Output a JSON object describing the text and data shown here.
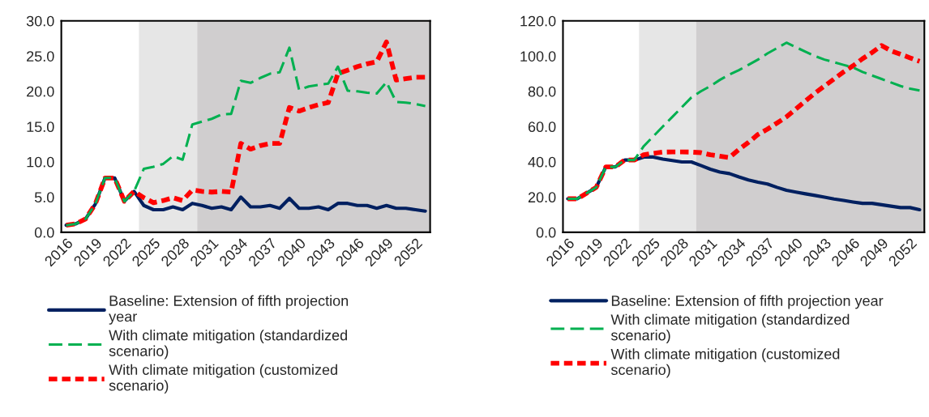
{
  "chart_data": [
    {
      "type": "line",
      "categories": [
        "2016",
        null,
        null,
        "2019",
        null,
        null,
        "2022",
        null,
        null,
        "2025",
        null,
        null,
        "2028",
        null,
        null,
        "2031",
        null,
        null,
        "2034",
        null,
        null,
        "2037",
        null,
        null,
        "2040",
        null,
        null,
        "2043",
        null,
        null,
        "2046",
        null,
        null,
        "2049",
        null,
        null,
        "2052",
        null
      ],
      "ylim": [
        0,
        30
      ],
      "yticks": [
        {
          "value": 0,
          "label": "0.0"
        },
        {
          "value": 5,
          "label": "5.0"
        },
        {
          "value": 10,
          "label": "10.0"
        },
        {
          "value": 15,
          "label": "15.0"
        },
        {
          "value": 20,
          "label": "20.0"
        },
        {
          "value": 25,
          "label": "25.0"
        },
        {
          "value": 30,
          "label": "30.0"
        }
      ],
      "legend": "bottom",
      "series": [
        {
          "name": "Baseline: Extension of fifth projection\nyear",
          "color": "#002060",
          "line_style": "solid",
          "values": [
            1.0,
            1.2,
            1.9,
            4.0,
            7.7,
            7.7,
            4.4,
            5.8,
            3.8,
            3.2,
            3.2,
            3.6,
            3.2,
            4.1,
            3.8,
            3.4,
            3.6,
            3.2,
            5.0,
            3.6,
            3.6,
            3.8,
            3.4,
            4.8,
            3.4,
            3.4,
            3.6,
            3.2,
            4.1,
            4.1,
            3.8,
            3.8,
            3.4,
            3.8,
            3.4,
            3.4,
            3.2,
            3.0
          ]
        },
        {
          "name": "With climate mitigation (standardized\nscenario)",
          "color": "#00b050",
          "line_style": "dashed",
          "values": [
            1.0,
            1.2,
            1.9,
            4.0,
            7.7,
            7.7,
            4.4,
            5.8,
            9.0,
            9.3,
            9.7,
            10.8,
            10.3,
            15.3,
            15.7,
            16.1,
            16.7,
            16.8,
            21.5,
            21.2,
            21.9,
            22.5,
            22.7,
            26.2,
            20.2,
            20.7,
            20.9,
            21.1,
            23.5,
            20.1,
            20.0,
            19.8,
            19.7,
            21.3,
            18.5,
            18.4,
            18.2,
            17.9
          ]
        },
        {
          "name": "With climate mitigation (customized\nscenario)",
          "color": "#ff0000",
          "line_style": "dotted",
          "values": [
            1.0,
            1.2,
            1.9,
            4.0,
            7.7,
            7.7,
            4.4,
            5.8,
            4.9,
            4.2,
            4.5,
            4.9,
            4.5,
            6.0,
            5.8,
            5.7,
            5.8,
            5.7,
            12.6,
            11.8,
            12.3,
            12.6,
            12.6,
            17.7,
            17.2,
            17.7,
            18.1,
            18.4,
            22.5,
            23.0,
            23.5,
            23.9,
            24.2,
            27.0,
            21.6,
            21.8,
            22.0,
            22.0
          ]
        }
      ]
    },
    {
      "type": "line",
      "categories": [
        "2016",
        null,
        null,
        "2019",
        null,
        null,
        "2022",
        null,
        null,
        "2025",
        null,
        null,
        "2028",
        null,
        null,
        "2031",
        null,
        null,
        "2034",
        null,
        null,
        "2037",
        null,
        null,
        "2040",
        null,
        null,
        "2043",
        null,
        null,
        "2046",
        null,
        null,
        "2049",
        null,
        null,
        "2052",
        null
      ],
      "ylim": [
        0,
        120
      ],
      "yticks": [
        {
          "value": 0,
          "label": "0.0"
        },
        {
          "value": 20,
          "label": "20.0"
        },
        {
          "value": 40,
          "label": "40.0"
        },
        {
          "value": 60,
          "label": "60.0"
        },
        {
          "value": 80,
          "label": "80.0"
        },
        {
          "value": 100,
          "label": "100.0"
        },
        {
          "value": 120,
          "label": "120.0"
        }
      ],
      "legend": "bottom",
      "series": [
        {
          "name": "Baseline: Extension of fifth projection year",
          "color": "#002060",
          "line_style": "solid",
          "values": [
            19.0,
            19.0,
            22.2,
            25.5,
            37.1,
            37.1,
            41.0,
            41.0,
            42.7,
            42.7,
            41.5,
            40.7,
            39.9,
            39.9,
            37.9,
            35.8,
            34.2,
            33.3,
            31.4,
            29.7,
            28.4,
            27.4,
            25.5,
            23.8,
            22.8,
            21.8,
            20.9,
            19.9,
            18.9,
            18.1,
            17.2,
            16.4,
            16.4,
            15.6,
            14.8,
            14.0,
            14.0,
            12.8
          ]
        },
        {
          "name": "With climate mitigation (standardized\nscenario)",
          "color": "#00b050",
          "line_style": "dashed",
          "values": [
            19.0,
            19.0,
            22.2,
            25.5,
            37.1,
            37.1,
            41.0,
            41.0,
            48.9,
            54.5,
            60.0,
            65.5,
            71.0,
            76.5,
            80.0,
            83.0,
            86.5,
            89.5,
            92.0,
            95.0,
            98.0,
            101.5,
            104.5,
            107.6,
            105.0,
            102.5,
            100.0,
            98.0,
            96.5,
            95.0,
            93.5,
            91.0,
            89.0,
            87.0,
            85.0,
            83.0,
            81.5,
            80.5
          ]
        },
        {
          "name": "With climate mitigation (customized\nscenario)",
          "color": "#ff0000",
          "line_style": "dotted",
          "values": [
            19.0,
            19.0,
            22.2,
            25.5,
            37.1,
            37.1,
            41.0,
            41.0,
            44.0,
            44.8,
            45.5,
            45.6,
            45.6,
            45.5,
            45.2,
            44.0,
            43.2,
            42.4,
            47.0,
            51.0,
            55.5,
            58.5,
            62.0,
            65.5,
            70.0,
            74.5,
            79.0,
            83.0,
            87.0,
            91.0,
            94.5,
            98.5,
            102.0,
            106.0,
            103.0,
            101.0,
            99.0,
            97.0
          ]
        }
      ]
    }
  ]
}
